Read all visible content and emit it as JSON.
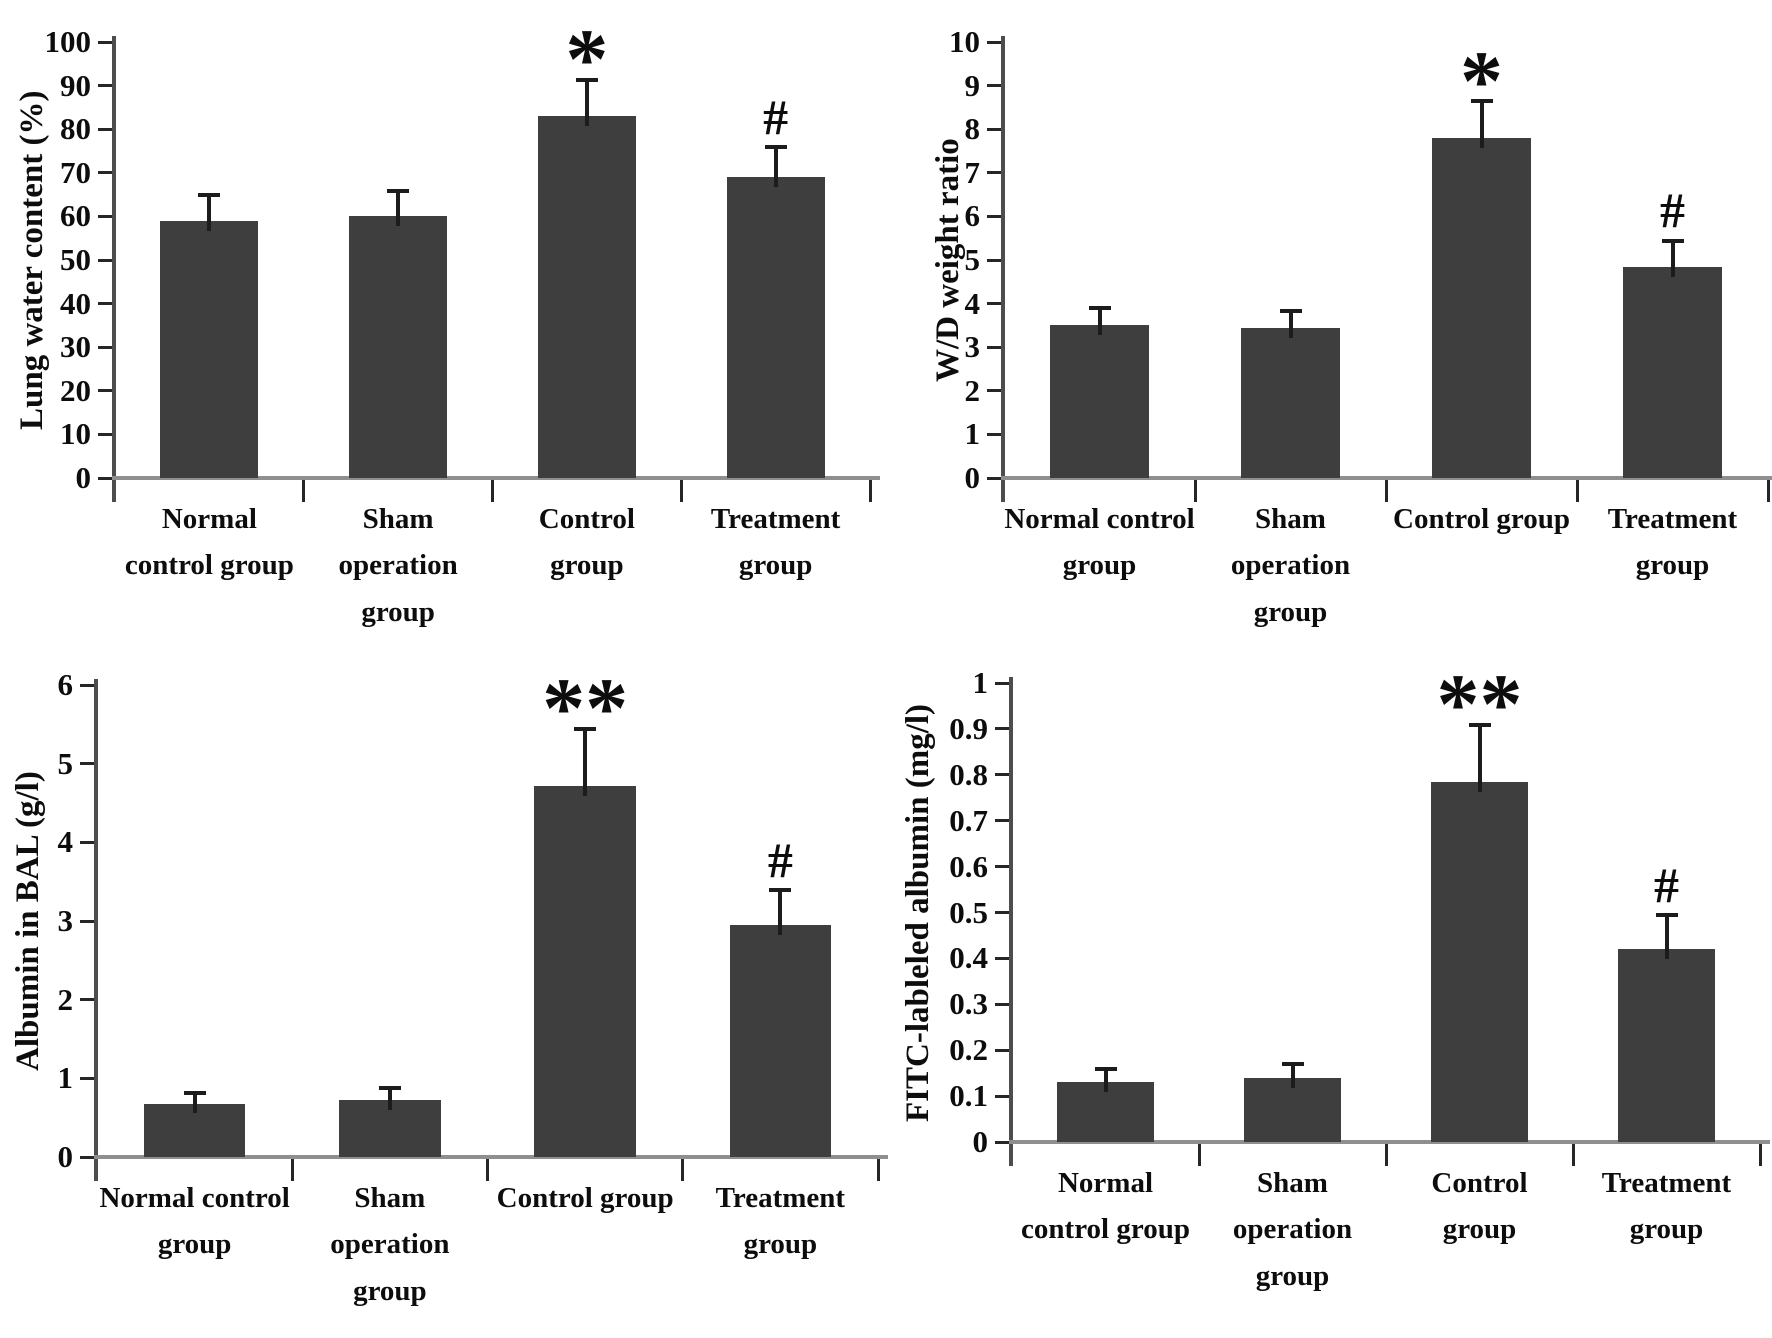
{
  "chart_data": [
    {
      "type": "bar",
      "ylabel": "Lung water content (%)",
      "ylim": [
        0,
        100
      ],
      "ytick_step": 10,
      "categories": [
        [
          "Normal",
          "control group"
        ],
        [
          "Sham",
          "operation",
          "group"
        ],
        [
          "Control",
          "group"
        ],
        [
          "Treatment",
          "group"
        ]
      ],
      "values": [
        59,
        60,
        83,
        69
      ],
      "error_plus": [
        6,
        6,
        8.5,
        7
      ],
      "significance": [
        "",
        "",
        "*",
        "#"
      ],
      "bar_color": "#3e3e3e",
      "grid": false,
      "legend": "none"
    },
    {
      "type": "bar",
      "ylabel": "W/D weight ratio",
      "ylim": [
        0,
        10
      ],
      "ytick_step": 1,
      "categories": [
        [
          "Normal control",
          "group"
        ],
        [
          "Sham",
          "operation",
          "group"
        ],
        [
          "Control group"
        ],
        [
          "Treatment",
          "group"
        ]
      ],
      "values": [
        3.5,
        3.45,
        7.8,
        4.85
      ],
      "error_plus": [
        0.4,
        0.4,
        0.85,
        0.6
      ],
      "significance": [
        "",
        "",
        "*",
        "#"
      ],
      "bar_color": "#3e3e3e",
      "grid": false,
      "legend": "none"
    },
    {
      "type": "bar",
      "ylabel": "Albumin in BAL (g/l)",
      "ylim": [
        0,
        6
      ],
      "ytick_step": 1,
      "categories": [
        [
          "Normal control",
          "group"
        ],
        [
          "Sham",
          "operation",
          "group"
        ],
        [
          "Control group"
        ],
        [
          "Treatment",
          "group"
        ]
      ],
      "values": [
        0.68,
        0.73,
        4.72,
        2.95
      ],
      "error_plus": [
        0.14,
        0.15,
        0.73,
        0.45
      ],
      "significance": [
        "",
        "",
        "**",
        "#"
      ],
      "bar_color": "#3e3e3e",
      "grid": false,
      "legend": "none"
    },
    {
      "type": "bar",
      "ylabel": "FITC-lableled albumin (mg/l)",
      "ylim": [
        0,
        1
      ],
      "ytick_step": 0.1,
      "categories": [
        [
          "Normal",
          "control group"
        ],
        [
          "Sham",
          "operation",
          "group"
        ],
        [
          "Control",
          "group"
        ],
        [
          "Treatment",
          "group"
        ]
      ],
      "values": [
        0.13,
        0.14,
        0.785,
        0.42
      ],
      "error_plus": [
        0.03,
        0.03,
        0.125,
        0.075
      ],
      "significance": [
        "",
        "",
        "**",
        "#"
      ],
      "bar_color": "#3e3e3e",
      "grid": false,
      "legend": "none"
    }
  ]
}
